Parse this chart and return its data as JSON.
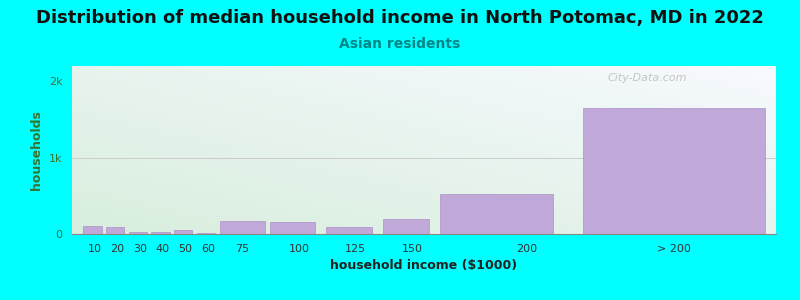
{
  "title": "Distribution of median household income in North Potomac, MD in 2022",
  "subtitle": "Asian residents",
  "xlabel": "household income ($1000)",
  "ylabel": "households",
  "background_color": "#00FFFF",
  "bar_color": "#c0a8d8",
  "bar_edge_color": "#b090c8",
  "categories": [
    "10",
    "20",
    "30",
    "40",
    "50",
    "60",
    "75",
    "100",
    "125",
    "150",
    "200",
    "> 200"
  ],
  "values": [
    100,
    90,
    22,
    20,
    50,
    10,
    175,
    155,
    90,
    190,
    530,
    1650
  ],
  "bar_lefts": [
    5,
    15,
    25,
    35,
    45,
    55,
    65,
    87,
    112,
    137,
    162,
    225
  ],
  "bar_widths": [
    8,
    8,
    8,
    8,
    8,
    8,
    20,
    20,
    20,
    20,
    50,
    80
  ],
  "ylim": [
    0,
    2200
  ],
  "yticks": [
    0,
    1000,
    2000
  ],
  "ytick_labels": [
    "0",
    "1k",
    "2k"
  ],
  "xlim": [
    0,
    310
  ],
  "xtick_positions": [
    10,
    20,
    30,
    40,
    50,
    60,
    75,
    100,
    125,
    150,
    200,
    265
  ],
  "xtick_labels": [
    "10",
    "20",
    "30",
    "40",
    "50",
    "60",
    "75",
    "100",
    "125",
    "150",
    "200",
    "> 200"
  ],
  "title_fontsize": 13,
  "subtitle_fontsize": 10,
  "label_fontsize": 9,
  "tick_fontsize": 8,
  "watermark_text": "City-Data.com"
}
